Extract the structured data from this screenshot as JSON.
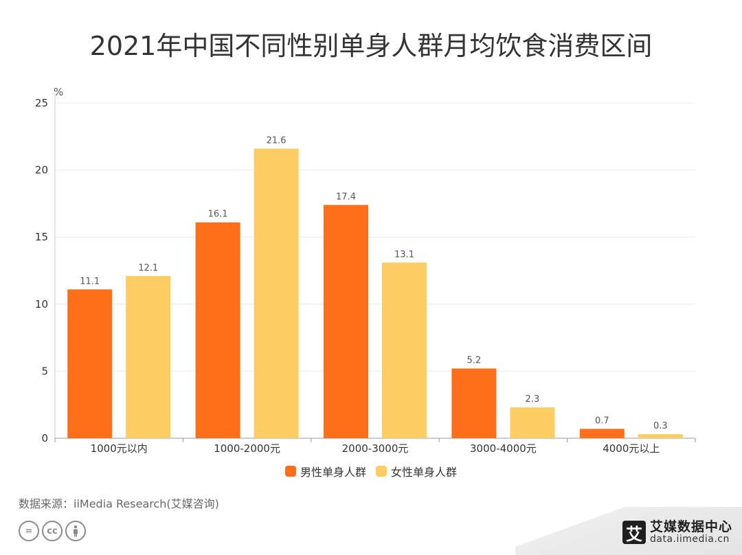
{
  "chart_data": {
    "type": "bar",
    "title": "2021年中国不同性别单身人群月均饮食消费区间",
    "ylabel": "%",
    "xlabel": "",
    "ylim": [
      0,
      25
    ],
    "yticks": [
      0,
      5,
      10,
      15,
      20,
      25
    ],
    "grid": true,
    "legend_position": "bottom",
    "categories": [
      "1000元以内",
      "1000-2000元",
      "2000-3000元",
      "3000-4000元",
      "4000元以上"
    ],
    "series": [
      {
        "name": "男性单身人群",
        "color": "#ff6f1a",
        "values": [
          11.1,
          16.1,
          17.4,
          5.2,
          0.7
        ]
      },
      {
        "name": "女性单身人群",
        "color": "#fccd62",
        "values": [
          12.1,
          21.6,
          13.1,
          2.3,
          0.3
        ]
      }
    ]
  },
  "source": "数据来源：iiMedia Research(艾媒咨询)",
  "footer": {
    "icons": [
      "equals-icon",
      "cc-icon",
      "person-icon"
    ],
    "brand_name": "艾媒数据中心",
    "brand_url": "data.iimedia.cn",
    "brand_logo_char": "艾"
  }
}
